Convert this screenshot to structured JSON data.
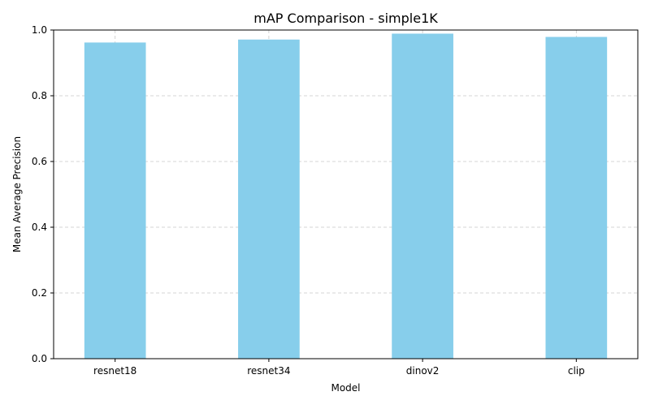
{
  "chart_data": {
    "type": "bar",
    "title": "mAP Comparison - simple1K",
    "xlabel": "Model",
    "ylabel": "Mean Average Precision",
    "categories": [
      "resnet18",
      "resnet34",
      "dinov2",
      "clip"
    ],
    "values": [
      0.962,
      0.971,
      0.989,
      0.979
    ],
    "ylim": [
      0,
      1.0
    ],
    "yticks": [
      "0.0",
      "0.2",
      "0.4",
      "0.6",
      "0.8",
      "1.0"
    ],
    "grid": true,
    "bar_color": "#87CEEB"
  }
}
